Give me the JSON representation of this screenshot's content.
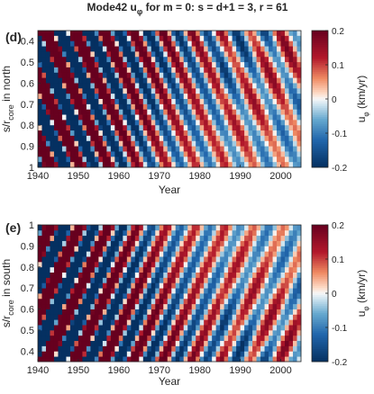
{
  "title": {
    "prefix": "Mode42 u",
    "sub": "φ",
    "suffix": "  for m = 0: s = d+1 = 3, r = 61"
  },
  "chart_data": [
    {
      "type": "heatmap",
      "panel": "(d)",
      "xlabel": "Year",
      "ylabel_main": "s/r",
      "ylabel_sub": "core",
      "ylabel_suffix": " in north",
      "x_ticks": [
        "1940",
        "1950",
        "1960",
        "1970",
        "1980",
        "1990",
        "2000"
      ],
      "x_range": [
        1940,
        2005
      ],
      "y_ticks": [
        "0.4",
        "0.5",
        "0.6",
        "0.7",
        "0.8",
        "0.9",
        "1"
      ],
      "y_range": [
        0.35,
        1.0
      ],
      "y_reversed": true,
      "colorbar": {
        "ticks": [
          "0.2",
          "0.1",
          "0",
          "-0.1",
          "-0.2"
        ],
        "range": [
          -0.2,
          0.2
        ],
        "label_main": "u",
        "label_sub": "φ",
        "label_suffix": " (km/yr)",
        "colormap": "red-white-blue diverging"
      }
    },
    {
      "type": "heatmap",
      "panel": "(e)",
      "xlabel": "Year",
      "ylabel_main": "s/r",
      "ylabel_sub": "core",
      "ylabel_suffix": " in south",
      "x_ticks": [
        "1940",
        "1950",
        "1960",
        "1970",
        "1980",
        "1990",
        "2000"
      ],
      "x_range": [
        1940,
        2005
      ],
      "y_ticks": [
        "1",
        "0.9",
        "0.8",
        "0.7",
        "0.6",
        "0.5",
        "0.4"
      ],
      "y_range": [
        0.35,
        1.0
      ],
      "y_reversed": false,
      "colorbar": {
        "ticks": [
          "0.2",
          "0.1",
          "0",
          "-0.1",
          "-0.2"
        ],
        "range": [
          -0.2,
          0.2
        ],
        "label_main": "u",
        "label_sub": "φ",
        "label_suffix": " (km/yr)",
        "colormap": "red-white-blue diverging"
      }
    }
  ]
}
